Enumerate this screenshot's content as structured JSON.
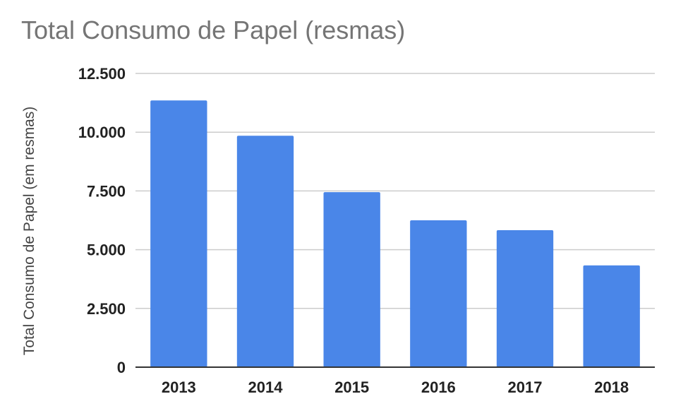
{
  "chart_data": {
    "type": "bar",
    "title": "Total Consumo de Papel (resmas)",
    "xlabel": "",
    "ylabel": "Total Consumo de Papel (em resmas)",
    "categories": [
      "2013",
      "2014",
      "2015",
      "2016",
      "2017",
      "2018"
    ],
    "values": [
      11350,
      9850,
      7450,
      6250,
      5830,
      4330
    ],
    "ylim": [
      0,
      12500
    ],
    "yticks": [
      0,
      2500,
      5000,
      7500,
      10000,
      12500
    ],
    "ytick_labels": [
      "0",
      "2.500",
      "5.000",
      "7.500",
      "10.000",
      "12.500"
    ],
    "grid": true,
    "legend": "none",
    "colors": {
      "bar": "#4a86e8",
      "grid": "#cccccc",
      "axis": "#333333"
    }
  }
}
